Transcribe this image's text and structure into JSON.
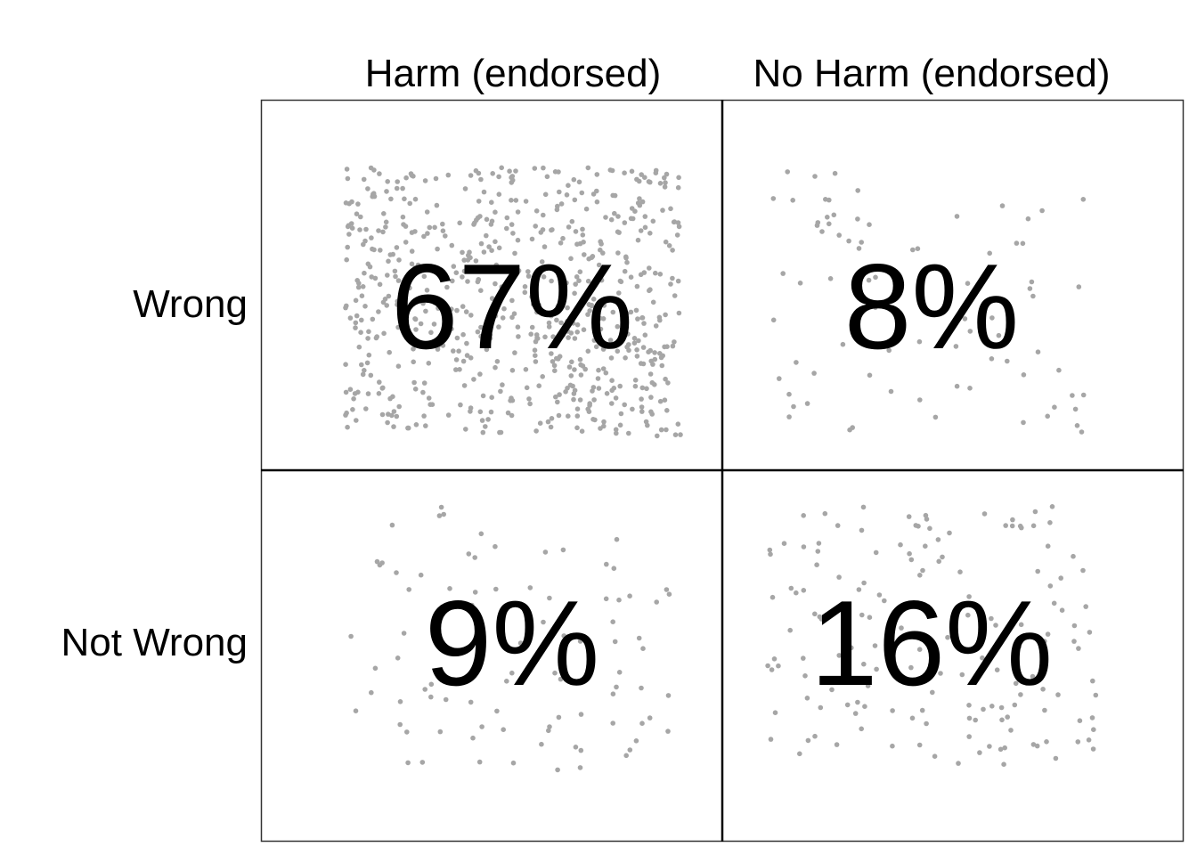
{
  "chart_data": {
    "type": "scatter",
    "subtype": "2x2 jittered count grid",
    "columns": [
      "Harm (endorsed)",
      "No Harm (endorsed)"
    ],
    "rows": [
      "Wrong",
      "Not Wrong"
    ],
    "cells": [
      {
        "row": "Wrong",
        "column": "Harm (endorsed)",
        "percent": 67,
        "label": "67%"
      },
      {
        "row": "Wrong",
        "column": "No Harm (endorsed)",
        "percent": 8,
        "label": "8%"
      },
      {
        "row": "Not Wrong",
        "column": "Harm (endorsed)",
        "percent": 9,
        "label": "9%"
      },
      {
        "row": "Not Wrong",
        "column": "No Harm (endorsed)",
        "percent": 16,
        "label": "16%"
      }
    ],
    "point_color": "#a6a6a6",
    "grid": true
  }
}
